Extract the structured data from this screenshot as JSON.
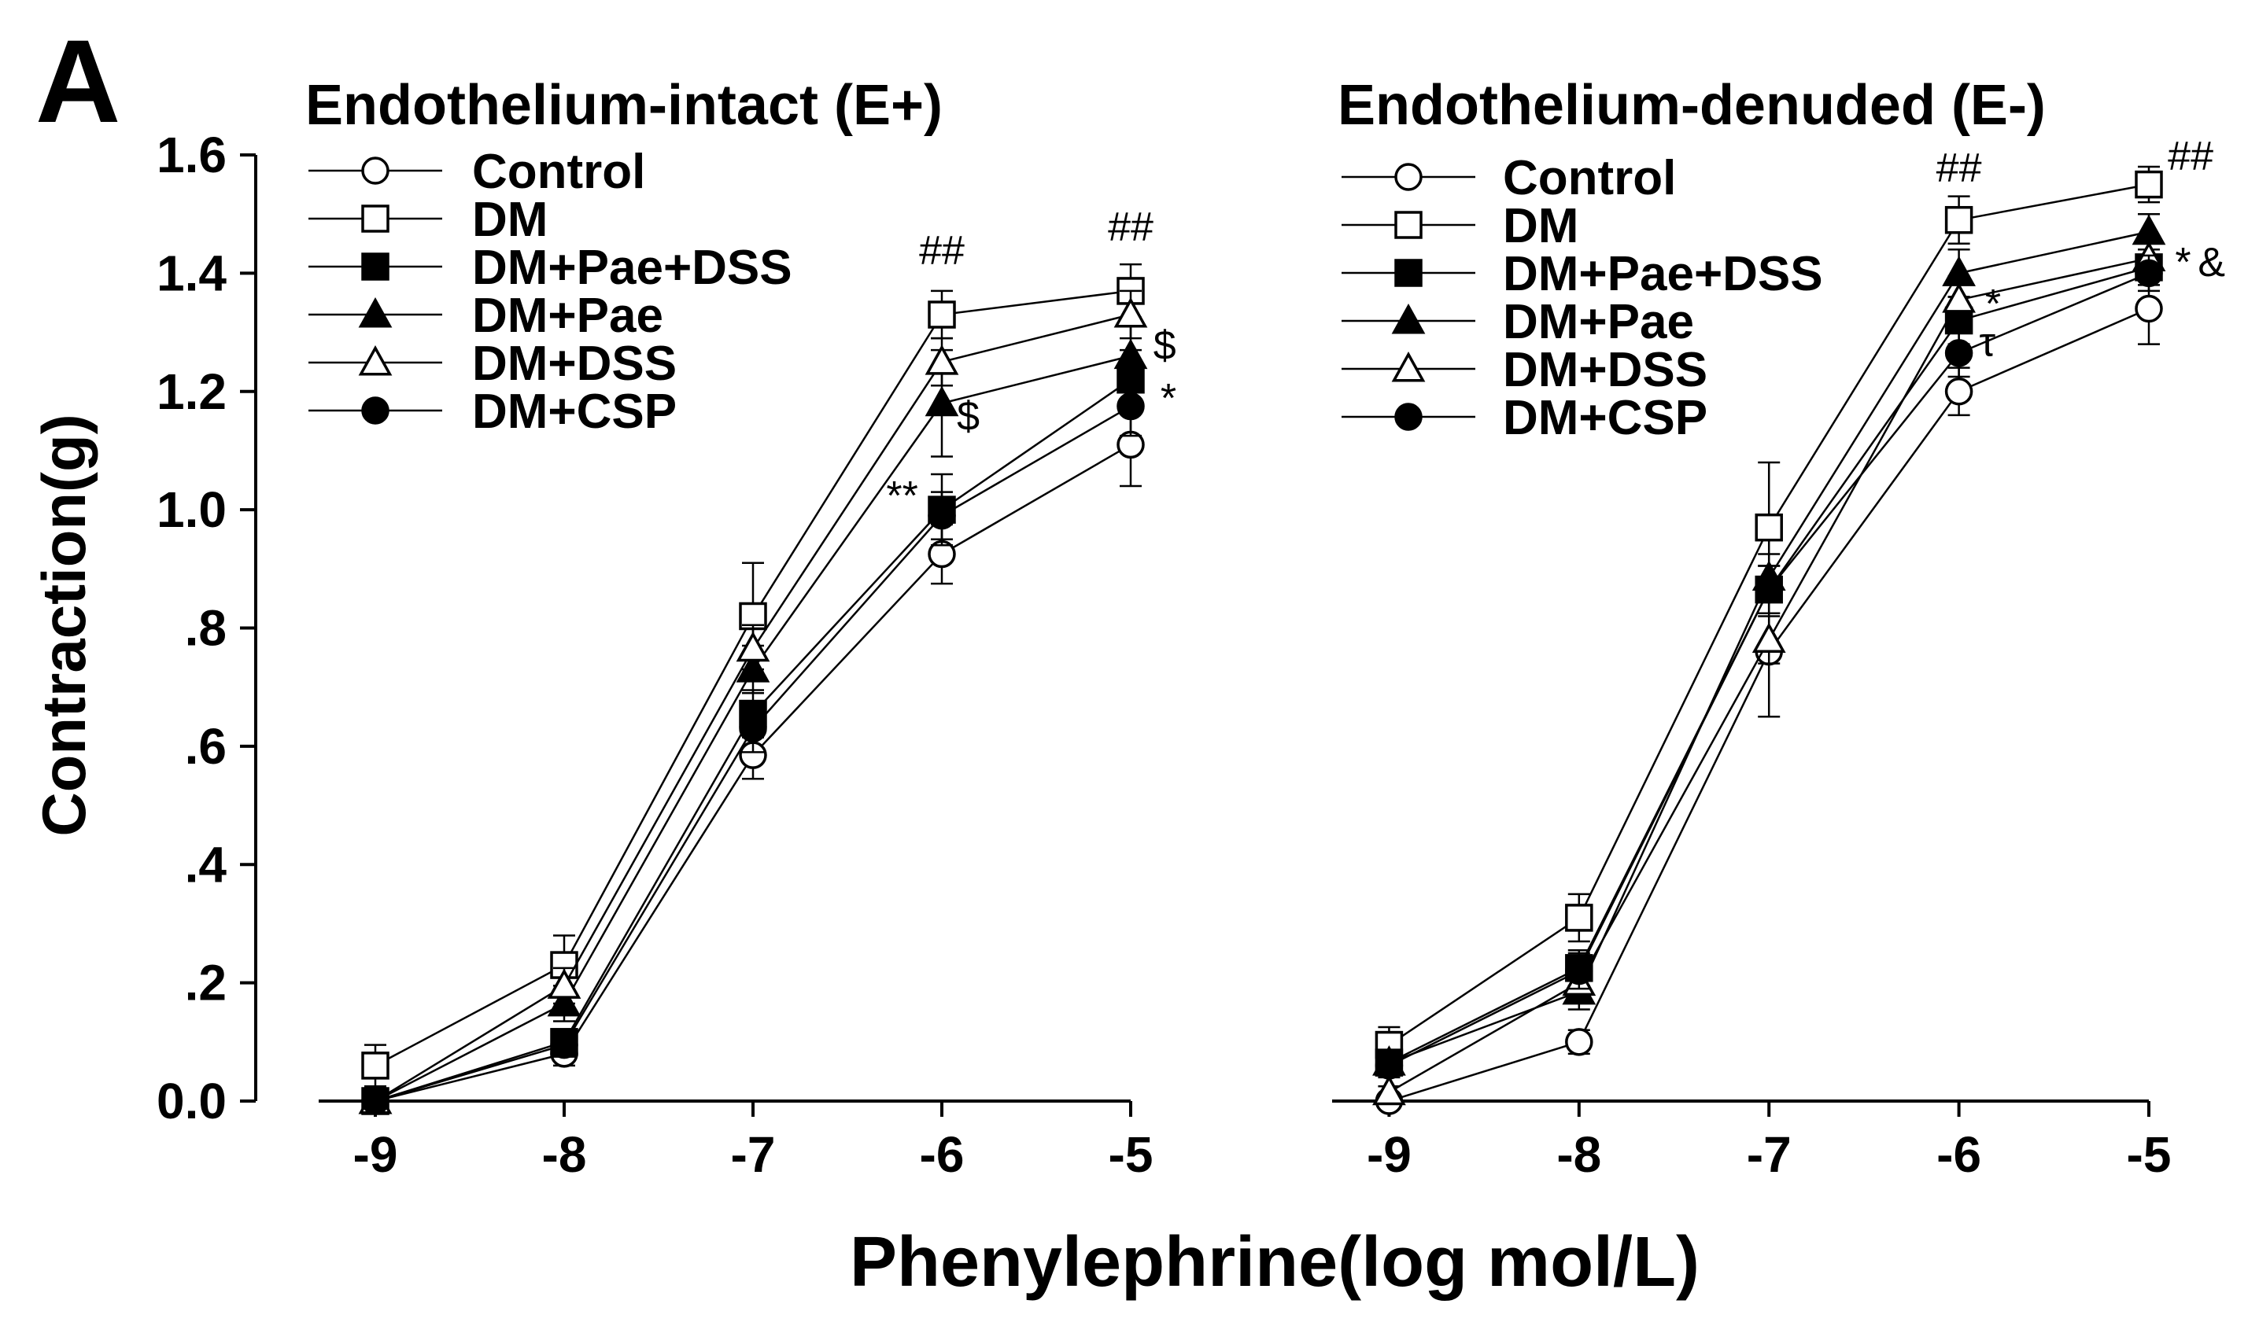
{
  "panel_label": "A",
  "shared": {
    "xlabel": "Phenylephrine(log mol/L)",
    "ylabel": "Contraction(g)"
  },
  "chart_data": [
    {
      "type": "line",
      "title": "Endothelium-intact (E+)",
      "xlabel": "Phenylephrine(log mol/L)",
      "ylabel": "Contraction(g)",
      "x": [
        -9,
        -8,
        -7,
        -6,
        -5
      ],
      "xlim": [
        -9.3,
        -5
      ],
      "ylim": [
        0,
        1.6
      ],
      "xticks": [
        -9,
        -8,
        -7,
        -6,
        -5
      ],
      "xtick_labels": [
        "-9",
        "-8",
        "-7",
        "-6",
        "-5"
      ],
      "yticks": [
        0,
        0.2,
        0.4,
        0.6,
        0.8,
        1.0,
        1.2,
        1.4,
        1.6
      ],
      "ytick_labels": [
        "0.0",
        ".2",
        ".4",
        ".6",
        ".8",
        "1.0",
        "1.2",
        "1.4",
        "1.6"
      ],
      "legend": "top-left",
      "series": [
        {
          "name": "Control",
          "marker": "circle-open",
          "values": [
            0.0,
            0.08,
            0.585,
            0.925,
            1.11
          ],
          "errors": [
            0.01,
            0.02,
            0.04,
            0.05,
            0.07
          ]
        },
        {
          "name": "DM",
          "marker": "square-open",
          "values": [
            0.06,
            0.23,
            0.82,
            1.33,
            1.37
          ],
          "errors": [
            0.035,
            0.05,
            0.09,
            0.04,
            0.045
          ]
        },
        {
          "name": "DM+Pae+DSS",
          "marker": "square-filled",
          "values": [
            0.0,
            0.1,
            0.655,
            1.0,
            1.22
          ],
          "errors": [
            0.01,
            0.02,
            0.04,
            0.06,
            0.05
          ]
        },
        {
          "name": "DM+Pae",
          "marker": "triangle-filled",
          "values": [
            0.0,
            0.165,
            0.73,
            1.18,
            1.26
          ],
          "errors": [
            0.01,
            0.03,
            0.04,
            0.09,
            0.05
          ]
        },
        {
          "name": "DM+DSS",
          "marker": "triangle-open",
          "values": [
            0.0,
            0.195,
            0.765,
            1.25,
            1.33
          ],
          "errors": [
            0.01,
            0.03,
            0.04,
            0.04,
            0.04
          ]
        },
        {
          "name": "DM+CSP",
          "marker": "circle-filled",
          "values": [
            0.0,
            0.095,
            0.63,
            0.99,
            1.175
          ],
          "errors": [
            0.01,
            0.02,
            0.04,
            0.04,
            0.05
          ]
        }
      ],
      "annotations": [
        {
          "text": "##",
          "x": -6,
          "y": 1.415
        },
        {
          "text": "##",
          "x": -5,
          "y": 1.455
        },
        {
          "text": "$",
          "x": -5.86,
          "y": 1.135
        },
        {
          "text": "$",
          "x": -4.82,
          "y": 1.255
        },
        {
          "text": "*",
          "x": -4.8,
          "y": 1.165
        },
        {
          "text": "**",
          "x": -6.21,
          "y": 1.0
        }
      ]
    },
    {
      "type": "line",
      "title": "Endothelium-denuded (E-)",
      "xlabel": "Phenylephrine(log mol/L)",
      "ylabel": "Contraction(g)",
      "x": [
        -9,
        -8,
        -7,
        -6,
        -5
      ],
      "xlim": [
        -9.3,
        -5
      ],
      "ylim": [
        0,
        1.6
      ],
      "xticks": [
        -9,
        -8,
        -7,
        -6,
        -5
      ],
      "xtick_labels": [
        "-9",
        "-8",
        "-7",
        "-6",
        "-5"
      ],
      "legend": "top-left",
      "series": [
        {
          "name": "Control",
          "marker": "circle-open",
          "values": [
            0.0,
            0.1,
            0.76,
            1.2,
            1.34
          ],
          "errors": [
            0.01,
            0.02,
            0.11,
            0.04,
            0.06
          ]
        },
        {
          "name": "DM",
          "marker": "square-open",
          "values": [
            0.095,
            0.31,
            0.97,
            1.49,
            1.55
          ],
          "errors": [
            0.03,
            0.04,
            0.11,
            0.04,
            0.03
          ]
        },
        {
          "name": "DM+Pae+DSS",
          "marker": "square-filled",
          "values": [
            0.065,
            0.225,
            0.865,
            1.32,
            1.41
          ],
          "errors": [
            0.02,
            0.03,
            0.04,
            0.04,
            0.03
          ]
        },
        {
          "name": "DM+Pae",
          "marker": "triangle-filled",
          "values": [
            0.065,
            0.185,
            0.885,
            1.4,
            1.47
          ],
          "errors": [
            0.02,
            0.03,
            0.04,
            0.04,
            0.03
          ]
        },
        {
          "name": "DM+DSS",
          "marker": "triangle-open",
          "values": [
            0.015,
            0.2,
            0.78,
            1.355,
            1.425
          ],
          "errors": [
            0.01,
            0.03,
            0.04,
            0.04,
            0.03
          ]
        },
        {
          "name": "DM+CSP",
          "marker": "circle-filled",
          "values": [
            0.06,
            0.22,
            0.865,
            1.265,
            1.4
          ],
          "errors": [
            0.02,
            0.03,
            0.04,
            0.04,
            0.03
          ]
        }
      ],
      "annotations": [
        {
          "text": "##",
          "x": -6,
          "y": 1.555
        },
        {
          "text": "##",
          "x": -4.78,
          "y": 1.575
        },
        {
          "text": "*",
          "x": -5.82,
          "y": 1.325
        },
        {
          "text": "τ",
          "x": -5.85,
          "y": 1.26
        },
        {
          "text": "*",
          "x": -4.82,
          "y": 1.395
        },
        {
          "text": "&",
          "x": -4.67,
          "y": 1.395
        }
      ]
    }
  ]
}
